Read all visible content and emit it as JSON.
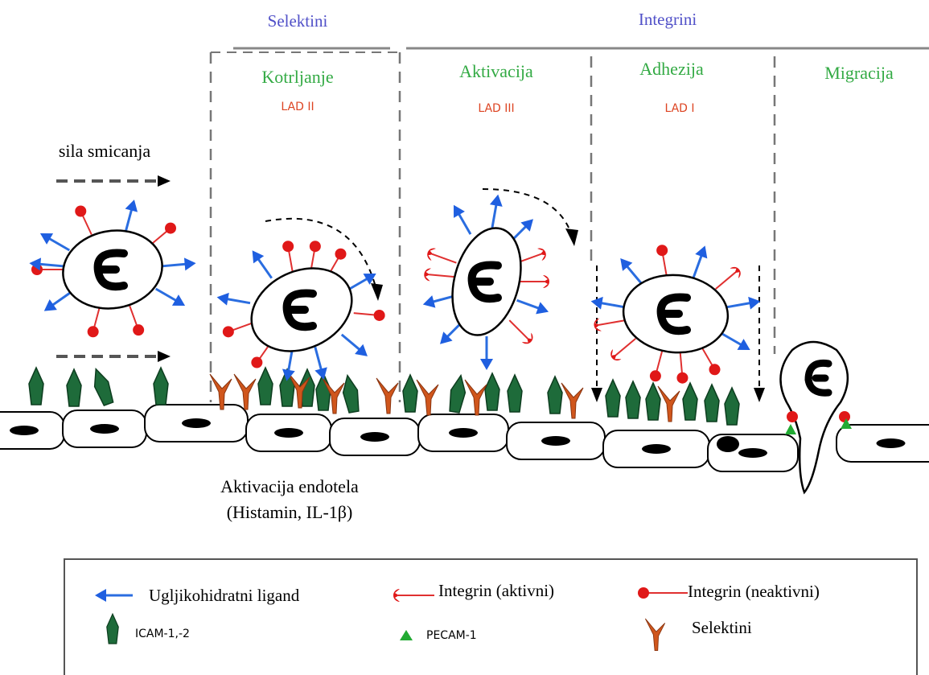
{
  "header": {
    "groups": [
      {
        "label": "Selektini"
      },
      {
        "label": "Integrini"
      }
    ]
  },
  "stages": [
    {
      "label": "Kotrljanje",
      "disease": "LAD II"
    },
    {
      "label": "Aktivacija",
      "disease": "LAD III"
    },
    {
      "label": "Adhezija",
      "disease": "LAD I"
    },
    {
      "label": "Migracija"
    }
  ],
  "flow_label": "sila smicanja",
  "endothelium_note": {
    "line1": "Aktivacija endotela",
    "line2": "(Histamin, IL-1β)"
  },
  "legend": {
    "items": [
      {
        "label": "Ugljikohidratni ligand"
      },
      {
        "label": "Integrin (aktivni)"
      },
      {
        "label": "Integrin (neaktivni)"
      },
      {
        "label": "ICAM-1,-2"
      },
      {
        "label": "PECAM-1"
      },
      {
        "label": "Selektini"
      }
    ]
  }
}
